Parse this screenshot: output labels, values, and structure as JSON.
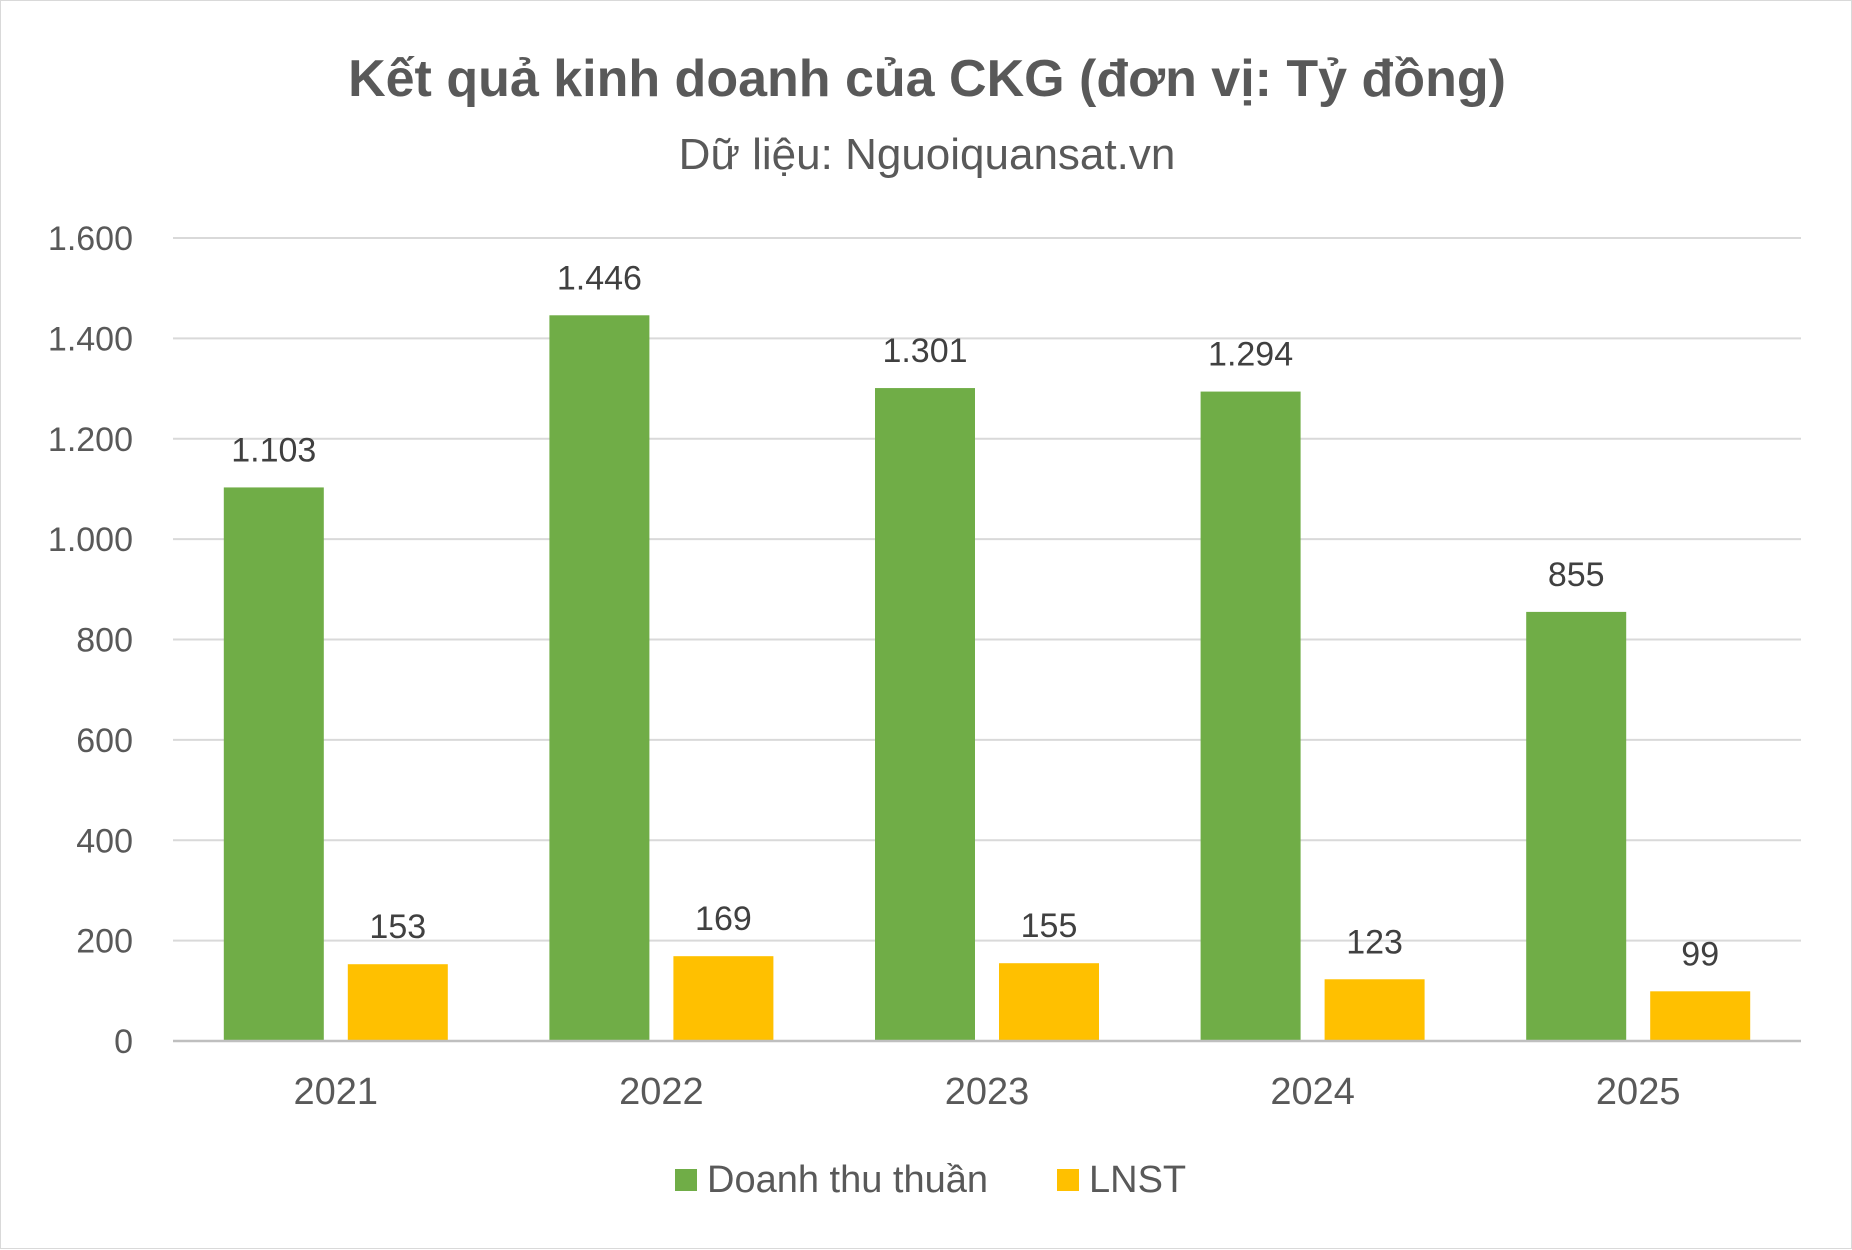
{
  "chart_data": {
    "type": "bar",
    "title": "Kết quả kinh doanh của CKG (đơn vị: Tỷ đồng)",
    "subtitle": "Dữ liệu: Nguoiquansat.vn",
    "categories": [
      "2021",
      "2022",
      "2023",
      "2024",
      "2025"
    ],
    "series": [
      {
        "name": "Doanh thu thuần",
        "color": "#70ad47",
        "values": [
          1103,
          1446,
          1301,
          1294,
          855
        ],
        "labels": [
          "1.103",
          "1.446",
          "1.301",
          "1.294",
          "855"
        ]
      },
      {
        "name": "LNST",
        "color": "#ffc000",
        "values": [
          153,
          169,
          155,
          123,
          99
        ],
        "labels": [
          "153",
          "169",
          "155",
          "123",
          "99"
        ]
      }
    ],
    "yticks": [
      0,
      200,
      400,
      600,
      800,
      1000,
      1200,
      1400,
      1600
    ],
    "ytick_labels": [
      "0",
      "200",
      "400",
      "600",
      "800",
      "1.000",
      "1.200",
      "1.400",
      "1.600"
    ],
    "ylim": [
      0,
      1600
    ],
    "grid": true,
    "legend_position": "bottom"
  }
}
